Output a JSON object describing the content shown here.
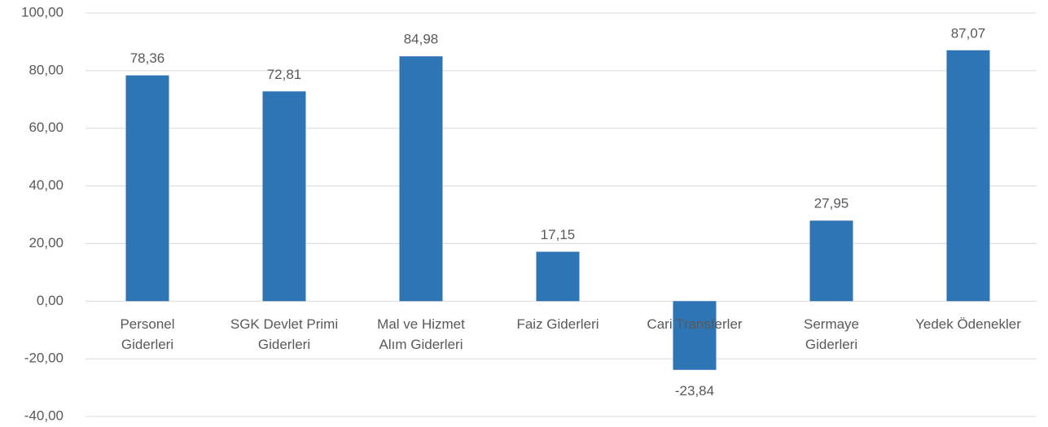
{
  "chart_data": {
    "type": "bar",
    "categories": [
      "Personel\nGiderleri",
      "SGK Devlet Primi\nGiderleri",
      "Mal ve Hizmet\nAlım Giderleri",
      "Faiz Giderleri",
      "Cari Transferler",
      "Sermaye\nGiderleri",
      "Yedek Ödenekler"
    ],
    "values": [
      78.36,
      72.81,
      84.98,
      17.15,
      -23.84,
      27.95,
      87.07
    ],
    "value_labels": [
      "78,36",
      "72,81",
      "84,98",
      "17,15",
      "-23,84",
      "27,95",
      "87,07"
    ],
    "color": "#2e75b6",
    "ylim": [
      -40,
      100
    ],
    "yticks": [
      {
        "value": -40,
        "label": "-40,00"
      },
      {
        "value": -20,
        "label": "-20,00"
      },
      {
        "value": 0,
        "label": "0,00"
      },
      {
        "value": 20,
        "label": "20,00"
      },
      {
        "value": 40,
        "label": "40,00"
      },
      {
        "value": 60,
        "label": "60,00"
      },
      {
        "value": 80,
        "label": "80,00"
      },
      {
        "value": 100,
        "label": "100,00"
      }
    ],
    "grid": true
  }
}
